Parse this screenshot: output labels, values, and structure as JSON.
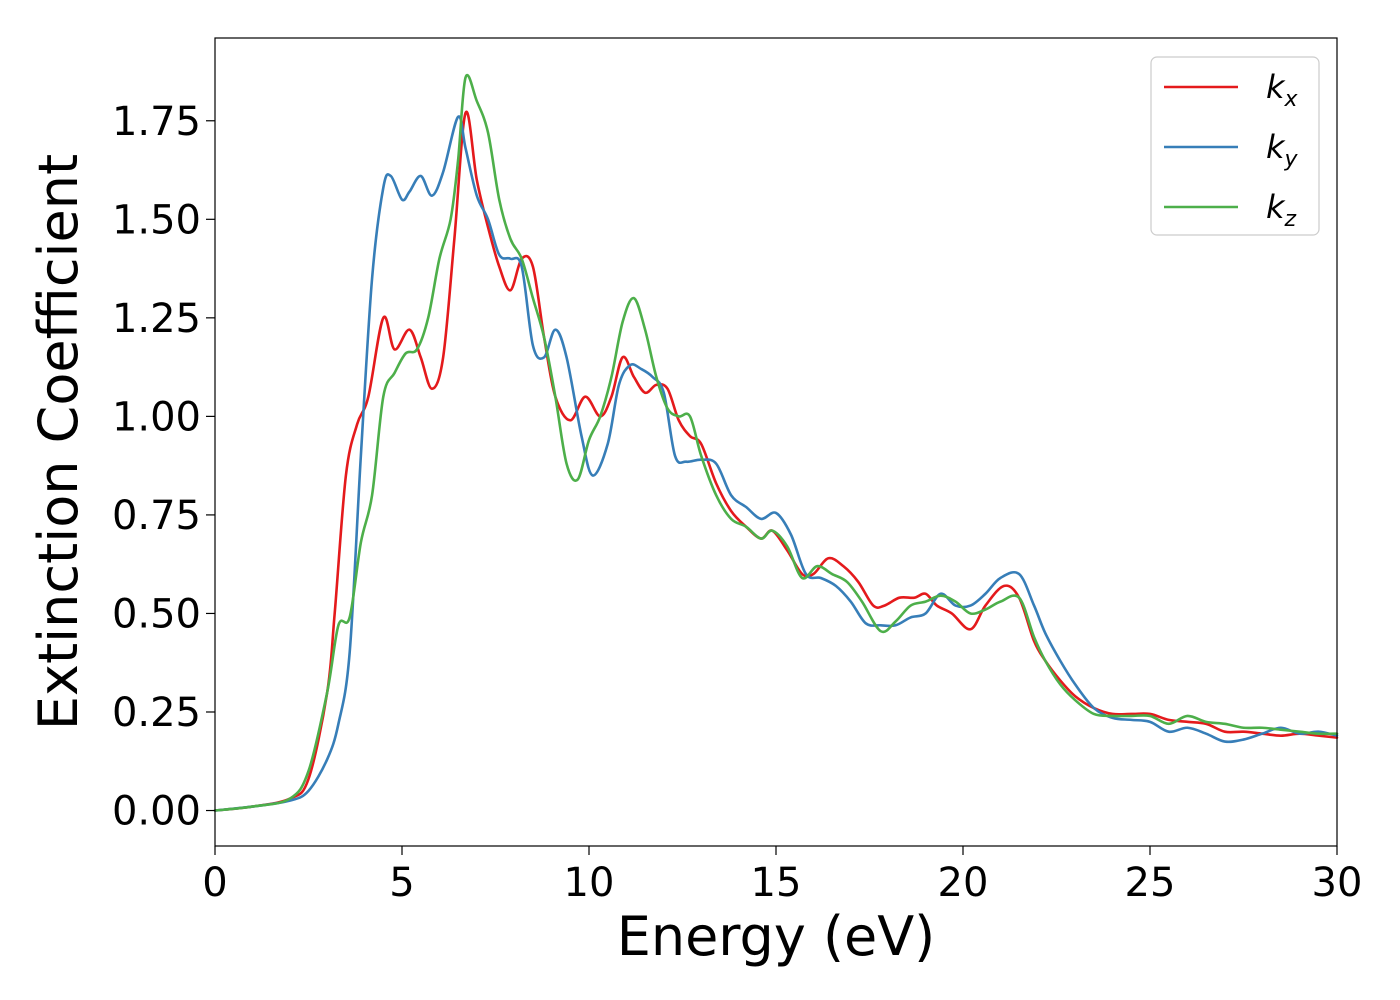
{
  "chart_data": {
    "type": "line",
    "xlabel": "Energy (eV)",
    "ylabel": "Extinction Coefficient",
    "xlim": [
      0,
      30
    ],
    "ylim": [
      -0.09,
      1.96
    ],
    "xticks": [
      "0",
      "5",
      "10",
      "15",
      "20",
      "25",
      "30"
    ],
    "yticks": [
      "0.00",
      "0.25",
      "0.50",
      "0.75",
      "1.00",
      "1.25",
      "1.50",
      "1.75"
    ],
    "grid": false,
    "legend_position": "top-right",
    "series": [
      {
        "name": "k",
        "subscript": "x",
        "color": "#e41a1c",
        "x": [
          0,
          1,
          2,
          2.5,
          3,
          3.2,
          3.5,
          3.8,
          4.1,
          4.5,
          4.8,
          5.2,
          5.5,
          5.8,
          6.1,
          6.4,
          6.7,
          7.0,
          7.3,
          7.6,
          7.9,
          8.2,
          8.5,
          8.8,
          9.1,
          9.5,
          9.9,
          10.3,
          10.6,
          10.9,
          11.2,
          11.5,
          11.8,
          12.1,
          12.4,
          12.7,
          13.0,
          13.4,
          13.8,
          14.2,
          14.6,
          14.9,
          15.3,
          15.7,
          16.0,
          16.4,
          16.8,
          17.2,
          17.6,
          17.9,
          18.3,
          18.7,
          19.0,
          19.3,
          19.7,
          20.2,
          20.6,
          21.1,
          21.5,
          21.9,
          22.2,
          22.6,
          23.0,
          23.5,
          24.0,
          24.5,
          25.0,
          25.5,
          26.0,
          26.5,
          27.0,
          27.5,
          28.0,
          28.5,
          29.0,
          29.5,
          30.0
        ],
        "values": [
          0.0,
          0.01,
          0.03,
          0.08,
          0.3,
          0.5,
          0.85,
          0.98,
          1.05,
          1.25,
          1.17,
          1.22,
          1.15,
          1.07,
          1.15,
          1.45,
          1.77,
          1.6,
          1.48,
          1.38,
          1.32,
          1.4,
          1.38,
          1.2,
          1.05,
          0.99,
          1.05,
          1.0,
          1.05,
          1.15,
          1.1,
          1.06,
          1.08,
          1.07,
          0.99,
          0.95,
          0.93,
          0.83,
          0.76,
          0.72,
          0.69,
          0.71,
          0.66,
          0.6,
          0.6,
          0.64,
          0.62,
          0.58,
          0.52,
          0.52,
          0.54,
          0.54,
          0.55,
          0.52,
          0.5,
          0.46,
          0.52,
          0.57,
          0.54,
          0.43,
          0.38,
          0.33,
          0.29,
          0.26,
          0.245,
          0.245,
          0.245,
          0.23,
          0.225,
          0.22,
          0.2,
          0.2,
          0.195,
          0.19,
          0.195,
          0.19,
          0.185
        ]
      },
      {
        "name": "k",
        "subscript": "y",
        "color": "#377eb8",
        "x": [
          0,
          1,
          2,
          2.5,
          3,
          3.3,
          3.6,
          3.9,
          4.2,
          4.5,
          4.7,
          5.0,
          5.2,
          5.5,
          5.8,
          6.1,
          6.5,
          6.7,
          7.0,
          7.3,
          7.6,
          7.9,
          8.2,
          8.5,
          8.8,
          9.1,
          9.4,
          9.8,
          10.1,
          10.5,
          10.8,
          11.1,
          11.4,
          11.7,
          12.0,
          12.3,
          12.6,
          13.0,
          13.4,
          13.8,
          14.2,
          14.6,
          15.0,
          15.4,
          15.8,
          16.2,
          16.6,
          17.0,
          17.4,
          17.8,
          18.2,
          18.6,
          19.0,
          19.4,
          19.8,
          20.2,
          20.6,
          21.0,
          21.5,
          21.9,
          22.2,
          22.6,
          23.0,
          23.5,
          24.0,
          24.5,
          25.0,
          25.5,
          26.0,
          26.5,
          27.0,
          27.5,
          28.0,
          28.5,
          29.0,
          29.5,
          30.0
        ],
        "values": [
          0.0,
          0.01,
          0.025,
          0.05,
          0.13,
          0.22,
          0.4,
          0.9,
          1.35,
          1.58,
          1.61,
          1.55,
          1.57,
          1.61,
          1.56,
          1.62,
          1.76,
          1.68,
          1.56,
          1.5,
          1.41,
          1.4,
          1.38,
          1.18,
          1.15,
          1.22,
          1.15,
          0.95,
          0.85,
          0.93,
          1.08,
          1.13,
          1.12,
          1.1,
          1.06,
          0.9,
          0.885,
          0.89,
          0.88,
          0.8,
          0.77,
          0.74,
          0.755,
          0.7,
          0.6,
          0.59,
          0.57,
          0.53,
          0.475,
          0.47,
          0.47,
          0.49,
          0.5,
          0.55,
          0.52,
          0.52,
          0.55,
          0.59,
          0.6,
          0.52,
          0.45,
          0.38,
          0.32,
          0.26,
          0.235,
          0.23,
          0.225,
          0.2,
          0.21,
          0.195,
          0.175,
          0.18,
          0.195,
          0.21,
          0.195,
          0.2,
          0.19
        ]
      },
      {
        "name": "k",
        "subscript": "z",
        "color": "#4daf4a",
        "x": [
          0,
          1,
          2,
          2.5,
          3,
          3.3,
          3.6,
          3.9,
          4.2,
          4.5,
          4.8,
          5.1,
          5.4,
          5.7,
          6.0,
          6.3,
          6.5,
          6.7,
          7.0,
          7.3,
          7.6,
          7.9,
          8.2,
          8.5,
          8.8,
          9.1,
          9.4,
          9.7,
          10.0,
          10.3,
          10.6,
          10.9,
          11.2,
          11.5,
          11.8,
          12.1,
          12.4,
          12.7,
          13.0,
          13.4,
          13.8,
          14.2,
          14.6,
          14.9,
          15.3,
          15.7,
          16.1,
          16.5,
          16.9,
          17.3,
          17.8,
          18.2,
          18.6,
          19.0,
          19.4,
          19.8,
          20.2,
          20.6,
          21.0,
          21.5,
          21.9,
          22.2,
          22.6,
          23.0,
          23.5,
          24.0,
          24.5,
          25.0,
          25.5,
          26.0,
          26.5,
          27.0,
          27.5,
          28.0,
          28.5,
          29.0,
          29.5,
          30.0
        ],
        "values": [
          0.0,
          0.01,
          0.03,
          0.1,
          0.3,
          0.47,
          0.49,
          0.68,
          0.8,
          1.05,
          1.11,
          1.16,
          1.17,
          1.25,
          1.4,
          1.5,
          1.65,
          1.86,
          1.8,
          1.72,
          1.55,
          1.45,
          1.4,
          1.3,
          1.2,
          1.05,
          0.88,
          0.84,
          0.94,
          1.0,
          1.1,
          1.24,
          1.3,
          1.22,
          1.1,
          1.02,
          1.0,
          1.0,
          0.9,
          0.8,
          0.74,
          0.72,
          0.69,
          0.71,
          0.67,
          0.59,
          0.62,
          0.6,
          0.58,
          0.53,
          0.455,
          0.48,
          0.52,
          0.53,
          0.545,
          0.53,
          0.5,
          0.51,
          0.53,
          0.54,
          0.44,
          0.38,
          0.32,
          0.28,
          0.245,
          0.24,
          0.24,
          0.24,
          0.22,
          0.24,
          0.225,
          0.22,
          0.21,
          0.21,
          0.205,
          0.2,
          0.195,
          0.195
        ]
      }
    ]
  }
}
